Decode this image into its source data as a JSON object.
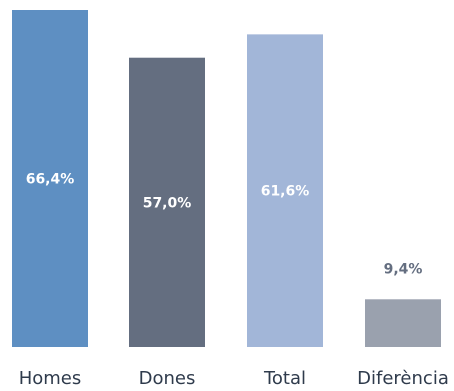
{
  "chart_data": {
    "type": "bar",
    "title": "",
    "xlabel": "",
    "ylabel": "",
    "ylim": [
      0,
      70
    ],
    "grid": false,
    "legend": "none",
    "categories": [
      "Homes",
      "Dones",
      "Total",
      "Diferència"
    ],
    "values": [
      66.4,
      57.0,
      61.6,
      9.4
    ],
    "value_labels": [
      "66,4%",
      "57,0%",
      "61,6%",
      "9,4%"
    ],
    "label_position": [
      "inside",
      "inside",
      "inside",
      "above"
    ],
    "colors": [
      "#5e8fc2",
      "#646e80",
      "#a2b6d8",
      "#9aa1ae"
    ],
    "label_colors": [
      "#ffffff",
      "#ffffff",
      "#ffffff",
      "#646e80"
    ]
  }
}
